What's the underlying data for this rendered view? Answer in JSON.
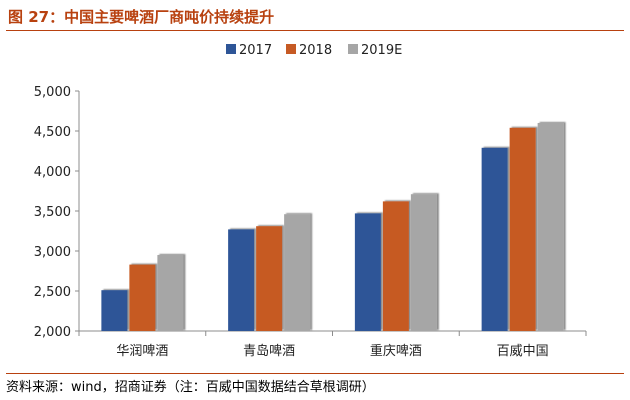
{
  "title": "图 27：中国主要啤酒厂商吨价持续提升",
  "source": "资料来源：wind，招商证券（注：百威中国数据结合草根调研）",
  "colors": {
    "accent": "#b8410f",
    "series": [
      "#2e5597",
      "#c65a24",
      "#a6a6a6"
    ]
  },
  "chart_data": {
    "type": "bar",
    "categories": [
      "华润啤酒",
      "青岛啤酒",
      "重庆啤酒",
      "百威中国"
    ],
    "series": [
      {
        "name": "2017",
        "values": [
          2510,
          3270,
          3470,
          4290
        ]
      },
      {
        "name": "2018",
        "values": [
          2830,
          3310,
          3620,
          4540
        ]
      },
      {
        "name": "2019E",
        "values": [
          2950,
          3460,
          3710,
          4600
        ]
      }
    ],
    "ylim": [
      2000,
      5000
    ],
    "yticks": [
      2000,
      2500,
      3000,
      3500,
      4000,
      4500,
      5000
    ],
    "ytick_labels": [
      "2,000",
      "2,500",
      "3,000",
      "3,500",
      "4,000",
      "4,500",
      "5,000"
    ],
    "legend_position": "top",
    "grid": false
  }
}
